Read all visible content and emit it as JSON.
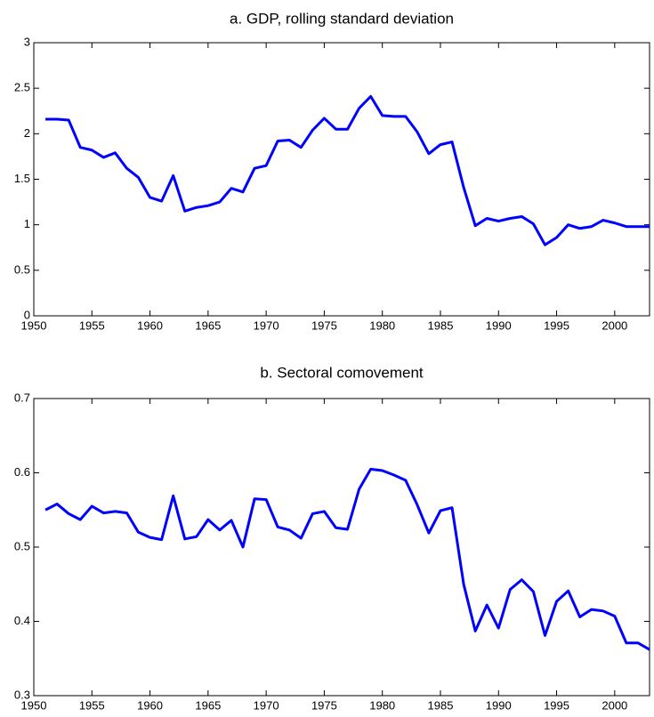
{
  "chart_data": [
    {
      "type": "line",
      "title": "a. GDP, rolling standard deviation",
      "color": "#0000ff",
      "x": [
        1951,
        1952,
        1953,
        1954,
        1955,
        1956,
        1957,
        1958,
        1959,
        1960,
        1961,
        1962,
        1963,
        1964,
        1965,
        1966,
        1967,
        1968,
        1969,
        1970,
        1971,
        1972,
        1973,
        1974,
        1975,
        1976,
        1977,
        1978,
        1979,
        1980,
        1981,
        1982,
        1983,
        1984,
        1985,
        1986,
        1987,
        1988,
        1989,
        1990,
        1991,
        1992,
        1993,
        1994,
        1995,
        1996,
        1997,
        1998,
        1999,
        2000,
        2001,
        2002,
        2003
      ],
      "values": [
        2.16,
        2.16,
        2.15,
        1.85,
        1.82,
        1.74,
        1.79,
        1.62,
        1.52,
        1.3,
        1.26,
        1.54,
        1.15,
        1.19,
        1.21,
        1.25,
        1.4,
        1.36,
        1.62,
        1.65,
        1.92,
        1.93,
        1.85,
        2.04,
        2.17,
        2.05,
        2.05,
        2.28,
        2.41,
        2.2,
        2.19,
        2.19,
        2.02,
        1.78,
        1.88,
        1.91,
        1.41,
        0.99,
        1.07,
        1.04,
        1.07,
        1.09,
        1.01,
        0.78,
        0.86,
        1.0,
        0.96,
        0.98,
        1.05,
        1.02,
        0.98,
        0.98,
        0.98
      ],
      "xlim": [
        1950,
        2003
      ],
      "xticks": [
        1950,
        1955,
        1960,
        1965,
        1970,
        1975,
        1980,
        1985,
        1990,
        1995,
        2000
      ],
      "ylim": [
        0,
        3
      ],
      "yticks": [
        0,
        0.5,
        1,
        1.5,
        2,
        2.5,
        3
      ],
      "grid": false
    },
    {
      "type": "line",
      "title": "b. Sectoral comovement",
      "color": "#0000ff",
      "x": [
        1951,
        1952,
        1953,
        1954,
        1955,
        1956,
        1957,
        1958,
        1959,
        1960,
        1961,
        1962,
        1963,
        1964,
        1965,
        1966,
        1967,
        1968,
        1969,
        1970,
        1971,
        1972,
        1973,
        1974,
        1975,
        1976,
        1977,
        1978,
        1979,
        1980,
        1981,
        1982,
        1983,
        1984,
        1985,
        1986,
        1987,
        1988,
        1989,
        1990,
        1991,
        1992,
        1993,
        1994,
        1995,
        1996,
        1997,
        1998,
        1999,
        2000,
        2001,
        2002,
        2003
      ],
      "values": [
        0.55,
        0.558,
        0.545,
        0.537,
        0.555,
        0.546,
        0.548,
        0.546,
        0.52,
        0.513,
        0.51,
        0.569,
        0.511,
        0.514,
        0.537,
        0.523,
        0.536,
        0.5,
        0.565,
        0.564,
        0.527,
        0.523,
        0.512,
        0.545,
        0.548,
        0.526,
        0.524,
        0.578,
        0.605,
        0.603,
        0.597,
        0.59,
        0.557,
        0.519,
        0.549,
        0.553,
        0.45,
        0.387,
        0.422,
        0.391,
        0.443,
        0.456,
        0.44,
        0.381,
        0.427,
        0.441,
        0.406,
        0.416,
        0.414,
        0.407,
        0.371,
        0.371,
        0.362
      ],
      "xlim": [
        1950,
        2003
      ],
      "xticks": [
        1950,
        1955,
        1960,
        1965,
        1970,
        1975,
        1980,
        1985,
        1990,
        1995,
        2000
      ],
      "ylim": [
        0.3,
        0.7
      ],
      "yticks": [
        0.3,
        0.4,
        0.5,
        0.6,
        0.7
      ],
      "grid": false
    }
  ]
}
